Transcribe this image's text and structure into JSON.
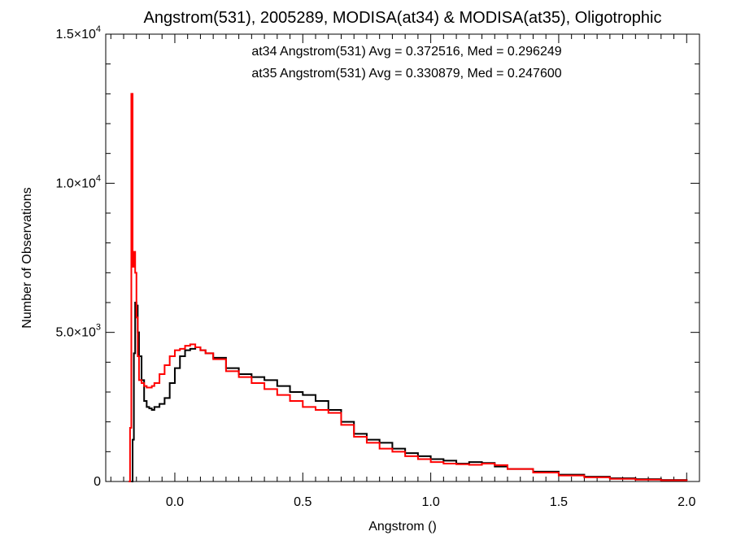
{
  "chart_data": {
    "type": "line",
    "title": "Angstrom(531), 2005289, MODISA(at34) & MODISA(at35), Oligotrophic",
    "xlabel": "Angstrom ()",
    "ylabel": "Number of Observations",
    "xlim": [
      -0.27,
      2.05
    ],
    "ylim": [
      0,
      15000
    ],
    "x_ticks": [
      {
        "value": 0.0,
        "label": "0.0"
      },
      {
        "value": 0.5,
        "label": "0.5"
      },
      {
        "value": 1.0,
        "label": "1.0"
      },
      {
        "value": 1.5,
        "label": "1.5"
      },
      {
        "value": 2.0,
        "label": "2.0"
      }
    ],
    "y_ticks": [
      {
        "value": 0,
        "mantissa": "0",
        "exp": ""
      },
      {
        "value": 5000,
        "mantissa": "5.0×10",
        "exp": "3"
      },
      {
        "value": 10000,
        "mantissa": "1.0×10",
        "exp": "4"
      },
      {
        "value": 15000,
        "mantissa": "1.5×10",
        "exp": "4"
      }
    ],
    "grid": false,
    "step": true,
    "annotations": [
      {
        "text": "at34 Angstrom(531) Avg = 0.372516, Med = 0.296249",
        "color": "#000000"
      },
      {
        "text": "at35 Angstrom(531) Avg = 0.330879, Med = 0.247600",
        "color": "#ff0000"
      }
    ],
    "series": [
      {
        "color": "#000000",
        "x": [
          -0.17,
          -0.165,
          -0.16,
          -0.155,
          -0.15,
          -0.145,
          -0.14,
          -0.13,
          -0.12,
          -0.11,
          -0.1,
          -0.09,
          -0.08,
          -0.06,
          -0.04,
          -0.02,
          0.0,
          0.02,
          0.04,
          0.06,
          0.08,
          0.1,
          0.12,
          0.15,
          0.2,
          0.25,
          0.3,
          0.35,
          0.4,
          0.45,
          0.5,
          0.55,
          0.6,
          0.65,
          0.7,
          0.75,
          0.8,
          0.85,
          0.9,
          0.95,
          1.0,
          1.05,
          1.1,
          1.15,
          1.2,
          1.25,
          1.3,
          1.4,
          1.5,
          1.6,
          1.7,
          1.8,
          1.9,
          2.0
        ],
        "values": [
          0,
          1400,
          4300,
          6000,
          5900,
          5000,
          4200,
          3400,
          2700,
          2500,
          2450,
          2400,
          2500,
          2600,
          2800,
          3300,
          3800,
          4200,
          4400,
          4450,
          4500,
          4400,
          4300,
          4150,
          3800,
          3600,
          3500,
          3400,
          3200,
          3000,
          2900,
          2700,
          2400,
          2000,
          1600,
          1400,
          1300,
          1100,
          950,
          850,
          750,
          700,
          600,
          650,
          620,
          500,
          420,
          330,
          230,
          160,
          110,
          80,
          50,
          30
        ]
      },
      {
        "color": "#ff0000",
        "x": [
          -0.18,
          -0.175,
          -0.17,
          -0.165,
          -0.16,
          -0.155,
          -0.15,
          -0.145,
          -0.14,
          -0.13,
          -0.12,
          -0.11,
          -0.1,
          -0.09,
          -0.08,
          -0.06,
          -0.04,
          -0.02,
          0.0,
          0.02,
          0.04,
          0.06,
          0.08,
          0.1,
          0.12,
          0.15,
          0.2,
          0.25,
          0.3,
          0.35,
          0.4,
          0.45,
          0.5,
          0.55,
          0.6,
          0.65,
          0.7,
          0.75,
          0.8,
          0.85,
          0.9,
          0.95,
          1.0,
          1.05,
          1.1,
          1.15,
          1.2,
          1.25,
          1.3,
          1.4,
          1.5,
          1.6,
          1.7,
          1.8,
          1.9,
          2.0
        ],
        "values": [
          0,
          1800,
          13000,
          7200,
          7700,
          7000,
          5500,
          4200,
          3400,
          3300,
          3200,
          3150,
          3150,
          3200,
          3300,
          3600,
          3900,
          4200,
          4400,
          4450,
          4550,
          4600,
          4500,
          4400,
          4300,
          4100,
          3700,
          3500,
          3300,
          3100,
          2900,
          2700,
          2500,
          2400,
          2300,
          1900,
          1500,
          1300,
          1100,
          1000,
          850,
          750,
          650,
          600,
          580,
          560,
          600,
          550,
          420,
          300,
          200,
          140,
          90,
          60,
          40,
          20
        ]
      }
    ]
  }
}
